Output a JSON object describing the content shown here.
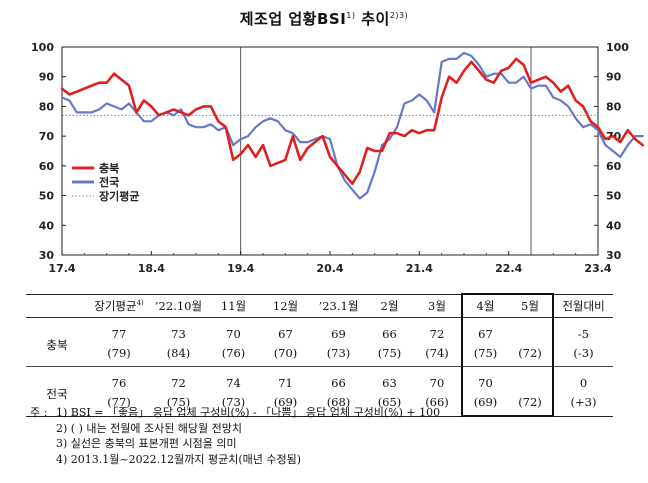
{
  "title": "제조업 업황BSI",
  "title_sup": "1)",
  "title_tail": "추이",
  "title_tail_sup": "2)3)",
  "chart_data": {
    "type": "line",
    "x_ticks": [
      "17.4",
      "18.4",
      "19.4",
      "20.4",
      "21.4",
      "22.4",
      "23.4"
    ],
    "ylim": [
      30,
      100
    ],
    "y_ticks": [
      30,
      40,
      50,
      60,
      70,
      80,
      90,
      100
    ],
    "long_term_average": 77,
    "vertical_lines_at_month_index": [
      24,
      63
    ],
    "legend": [
      "충북",
      "전국",
      "장기평균"
    ],
    "series": [
      {
        "name": "충북",
        "color": "#e02020",
        "values": [
          86,
          84,
          85,
          86,
          87,
          88,
          88,
          91,
          89,
          87,
          78,
          82,
          80,
          77,
          78,
          79,
          78,
          77,
          79,
          80,
          80,
          75,
          73,
          62,
          64,
          67,
          63,
          67,
          60,
          61,
          62,
          70,
          62,
          66,
          68,
          70,
          63,
          60,
          57,
          54,
          58,
          66,
          65,
          65,
          71,
          71,
          70,
          72,
          71,
          72,
          72,
          83,
          90,
          88,
          92,
          95,
          92,
          89,
          88,
          92,
          93,
          96,
          94,
          88,
          89,
          90,
          88,
          85,
          87,
          82,
          80,
          75,
          73,
          69,
          70,
          68,
          72,
          69,
          67
        ]
      },
      {
        "name": "전국",
        "color": "#6878c8",
        "values": [
          83,
          82,
          78,
          78,
          78,
          79,
          81,
          80,
          79,
          81,
          78,
          75,
          75,
          77,
          78,
          77,
          79,
          74,
          73,
          73,
          74,
          72,
          73,
          67,
          69,
          70,
          73,
          75,
          76,
          75,
          72,
          71,
          68,
          68,
          69,
          70,
          69,
          60,
          55,
          52,
          49,
          51,
          58,
          67,
          69,
          73,
          81,
          82,
          84,
          82,
          78,
          95,
          96,
          96,
          98,
          97,
          94,
          90,
          91,
          91,
          88,
          88,
          90,
          86,
          87,
          87,
          83,
          82,
          80,
          76,
          73,
          74,
          72,
          67,
          65,
          63,
          67,
          70,
          70
        ]
      }
    ]
  },
  "table": {
    "header": [
      "장기평균",
      "’22.10월",
      "11월",
      "12월",
      "’23.1월",
      "2월",
      "3월",
      "4월",
      "5월",
      "전월대비"
    ],
    "header_sup": "4)",
    "rows": [
      {
        "label": "충북",
        "current": [
          "77",
          "73",
          "70",
          "67",
          "69",
          "66",
          "72",
          "67",
          "",
          "-5"
        ],
        "previous": [
          "(79)",
          "(84)",
          "(76)",
          "(70)",
          "(73)",
          "(75)",
          "(74)",
          "(75)",
          "(72)",
          "(-3)"
        ]
      },
      {
        "label": "전국",
        "current": [
          "76",
          "72",
          "74",
          "71",
          "66",
          "63",
          "70",
          "70",
          "",
          "0"
        ],
        "previous": [
          "(77)",
          "(75)",
          "(73)",
          "(69)",
          "(68)",
          "(65)",
          "(66)",
          "(69)",
          "(72)",
          "(+3)"
        ]
      }
    ]
  },
  "notes": {
    "lead": "주 :",
    "items": [
      "1) BSI = 「좋음」 응답 업체 구성비(%) - 「나쁨」 응답 업체 구성비(%) + 100",
      "2) ( ) 내는 전월에 조사된 해당월 전망치",
      "3) 실선은 충북의 표본개편 시점을 의미",
      "4) 2013.1월~2022.12월까지 평균치(매년 수정됨)"
    ]
  }
}
